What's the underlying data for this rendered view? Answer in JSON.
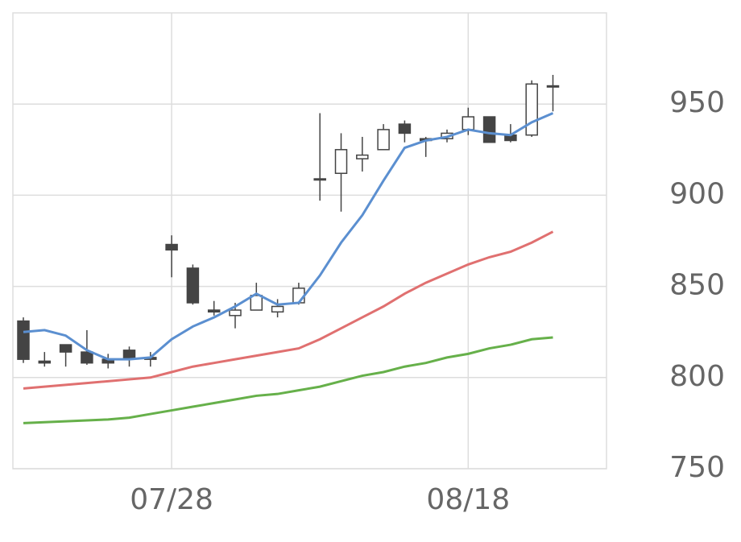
{
  "chart_data": {
    "type": "candlestick",
    "categories": [
      null,
      null,
      null,
      null,
      null,
      null,
      null,
      "07/28",
      null,
      null,
      null,
      null,
      null,
      null,
      null,
      null,
      null,
      null,
      null,
      null,
      null,
      "08/18",
      null,
      null,
      null,
      null
    ],
    "open": [
      831,
      809,
      818,
      814,
      810,
      815,
      811,
      873,
      860,
      837,
      834,
      837,
      836,
      841,
      909,
      912,
      920,
      925,
      939,
      931,
      931,
      936,
      943,
      933,
      933,
      960
    ],
    "high": [
      833,
      814,
      818,
      826,
      813,
      817,
      814,
      878,
      862,
      842,
      841,
      852,
      843,
      852,
      945,
      934,
      932,
      939,
      941,
      932,
      936,
      948,
      943,
      939,
      963,
      966
    ],
    "low": [
      808,
      806,
      806,
      807,
      805,
      806,
      806,
      855,
      840,
      834,
      827,
      837,
      833,
      840,
      897,
      891,
      913,
      925,
      929,
      921,
      929,
      933,
      929,
      929,
      932,
      946
    ],
    "close": [
      810,
      808,
      814,
      808,
      808,
      810,
      810,
      870,
      841,
      836,
      837,
      845,
      839,
      849,
      909,
      925,
      922,
      936,
      934,
      930,
      934,
      943,
      929,
      930,
      961,
      960
    ],
    "up_color": "#ffffff",
    "down_color": "#444444",
    "candle_stroke": "#444444",
    "lines": [
      {
        "color": "#5b8fd0",
        "values": [
          825,
          826,
          823,
          815,
          810,
          810,
          811,
          821,
          828,
          833,
          839,
          846,
          840,
          841,
          856,
          874,
          889,
          908,
          926,
          930,
          932,
          936,
          934,
          933,
          940,
          945
        ]
      },
      {
        "color": "#e07070",
        "values": [
          794,
          795,
          796,
          797,
          798,
          799,
          800,
          803,
          806,
          808,
          810,
          812,
          814,
          816,
          821,
          827,
          833,
          839,
          846,
          852,
          857,
          862,
          866,
          869,
          874,
          880
        ]
      },
      {
        "color": "#66b04a",
        "values": [
          775,
          775.5,
          776,
          776.5,
          777,
          778,
          780,
          782,
          784,
          786,
          788,
          790,
          791,
          793,
          795,
          798,
          801,
          803,
          806,
          808,
          811,
          813,
          816,
          818,
          821,
          822
        ]
      }
    ],
    "ylim": [
      750,
      1000
    ],
    "yticks": [
      750,
      800,
      850,
      900,
      950
    ],
    "grid": true
  }
}
